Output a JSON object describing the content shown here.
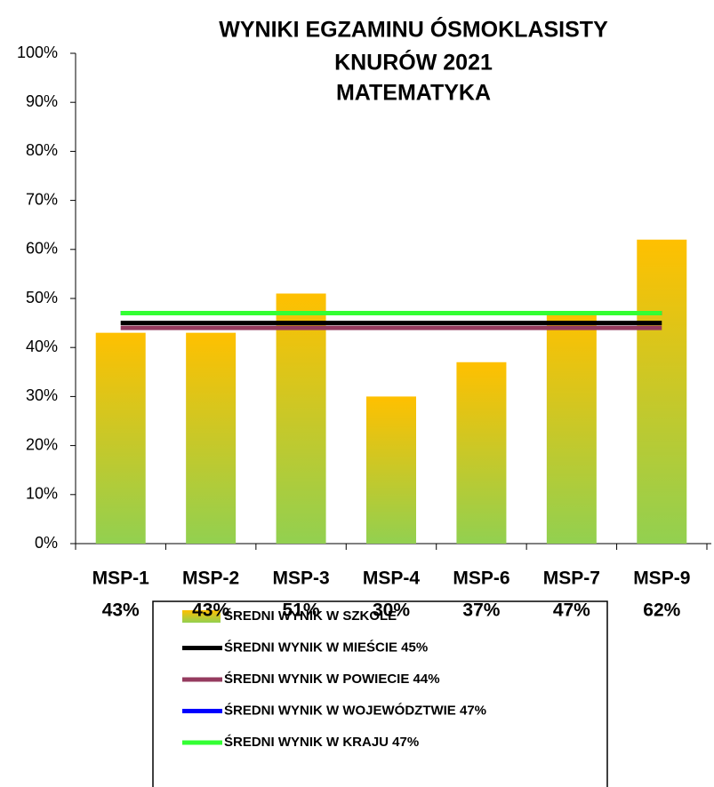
{
  "chart_data": {
    "type": "bar",
    "title": [
      "WYNIKI EGZAMINU ÓSMOKLASISTY",
      "KNURÓW 2021",
      "MATEMATYKA"
    ],
    "categories": [
      "MSP-1",
      "MSP-2",
      "MSP-3",
      "MSP-4",
      "MSP-6",
      "MSP-7",
      "MSP-9"
    ],
    "series": [
      {
        "name": "ŚREDNI WYNIK W SZKOLE",
        "type": "bar",
        "color": [
          "#ffc000",
          "#92d050"
        ],
        "values": [
          43,
          43,
          51,
          30,
          37,
          47,
          62
        ],
        "value_labels": [
          "43%",
          "43%",
          "51%",
          "30%",
          "37%",
          "47%",
          "62%"
        ]
      },
      {
        "name": "ŚREDNI WYNIK W MIEŚCIE 45%",
        "type": "line",
        "color": "#000000",
        "values": [
          45,
          45,
          45,
          45,
          45,
          45,
          45
        ]
      },
      {
        "name": "ŚREDNI WYNIK W POWIECIE 44%",
        "type": "line",
        "color": "#953b5f",
        "values": [
          44,
          44,
          44,
          44,
          44,
          44,
          44
        ]
      },
      {
        "name": "ŚREDNI WYNIK W WOJEWÓDZTWIE 47%",
        "type": "line",
        "color": "#0000ff",
        "values": [
          47,
          47,
          47,
          47,
          47,
          47,
          47
        ]
      },
      {
        "name": "ŚREDNI WYNIK W KRAJU 47%",
        "type": "line",
        "color": "#33ff33",
        "values": [
          47,
          47,
          47,
          47,
          47,
          47,
          47
        ]
      }
    ],
    "ylim": [
      0,
      100
    ],
    "yticks": [
      {
        "value": 0,
        "label": "0%"
      },
      {
        "value": 10,
        "label": "10%"
      },
      {
        "value": 20,
        "label": "20%"
      },
      {
        "value": 30,
        "label": "30%"
      },
      {
        "value": 40,
        "label": "40%"
      },
      {
        "value": 50,
        "label": "50%"
      },
      {
        "value": 60,
        "label": "60%"
      },
      {
        "value": 70,
        "label": "70%"
      },
      {
        "value": 80,
        "label": "80%"
      },
      {
        "value": 90,
        "label": "90%"
      },
      {
        "value": 100,
        "label": "100%"
      }
    ]
  }
}
